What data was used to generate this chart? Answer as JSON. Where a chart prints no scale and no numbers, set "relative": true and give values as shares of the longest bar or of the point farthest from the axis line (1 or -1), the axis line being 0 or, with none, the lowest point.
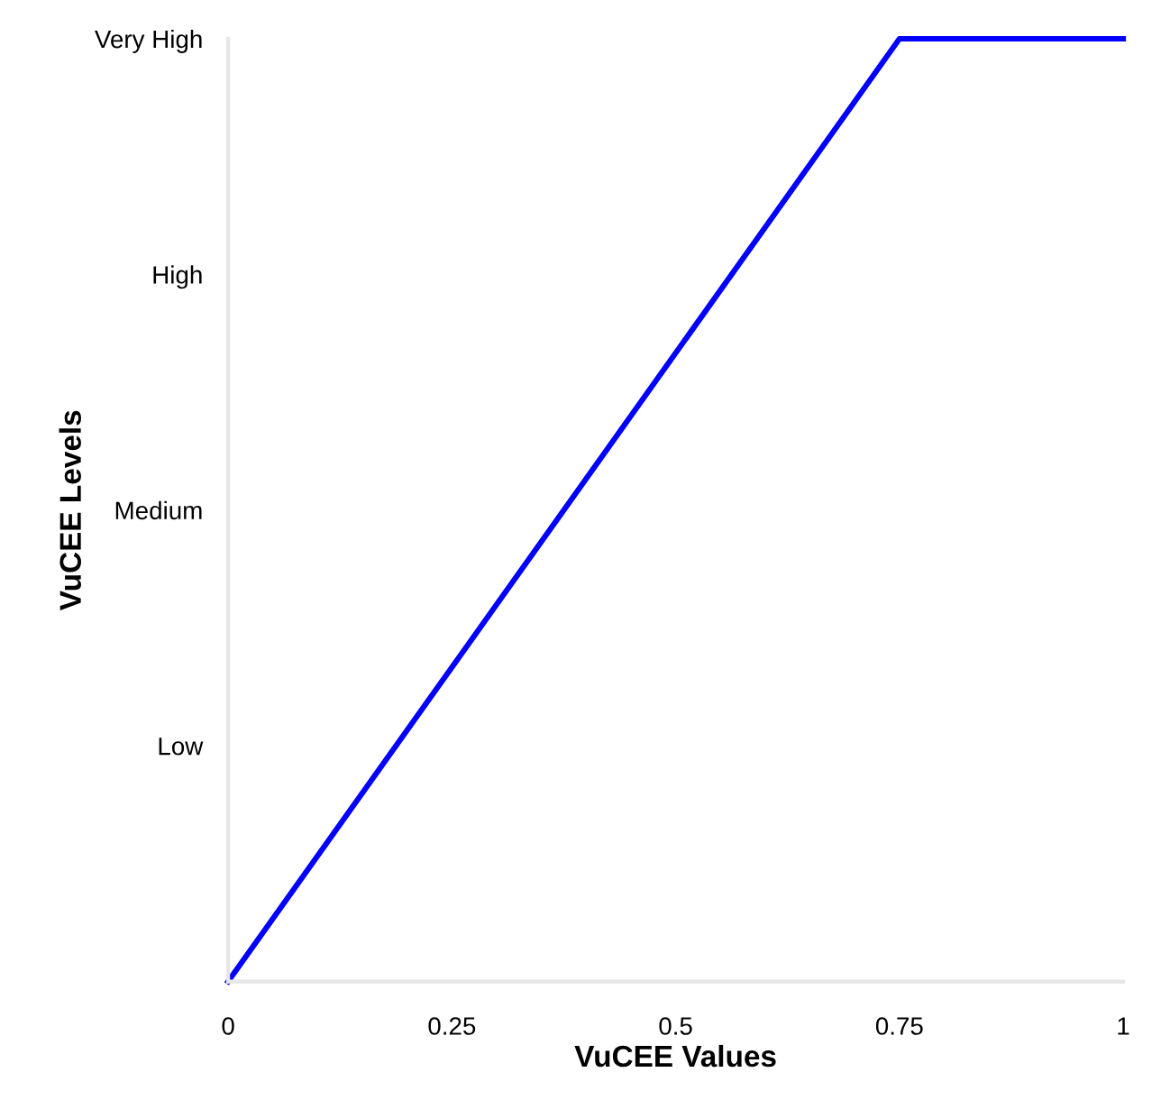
{
  "chart_data": {
    "type": "line",
    "xlabel": "VuCEE Values",
    "ylabel": "VuCEE Levels",
    "x": [
      0,
      0.75,
      1
    ],
    "series": [
      {
        "color": "#0000ff",
        "values": [
          0,
          1,
          1
        ]
      }
    ],
    "relative": true,
    "xlim": [
      0,
      1
    ],
    "xticks": [
      0,
      0.25,
      0.5,
      0.75,
      1
    ],
    "annotations": [
      "Low",
      "Medium",
      "High",
      "Very High"
    ],
    "grid": false,
    "legend": false,
    "marker": "none",
    "line_style": "solid"
  }
}
